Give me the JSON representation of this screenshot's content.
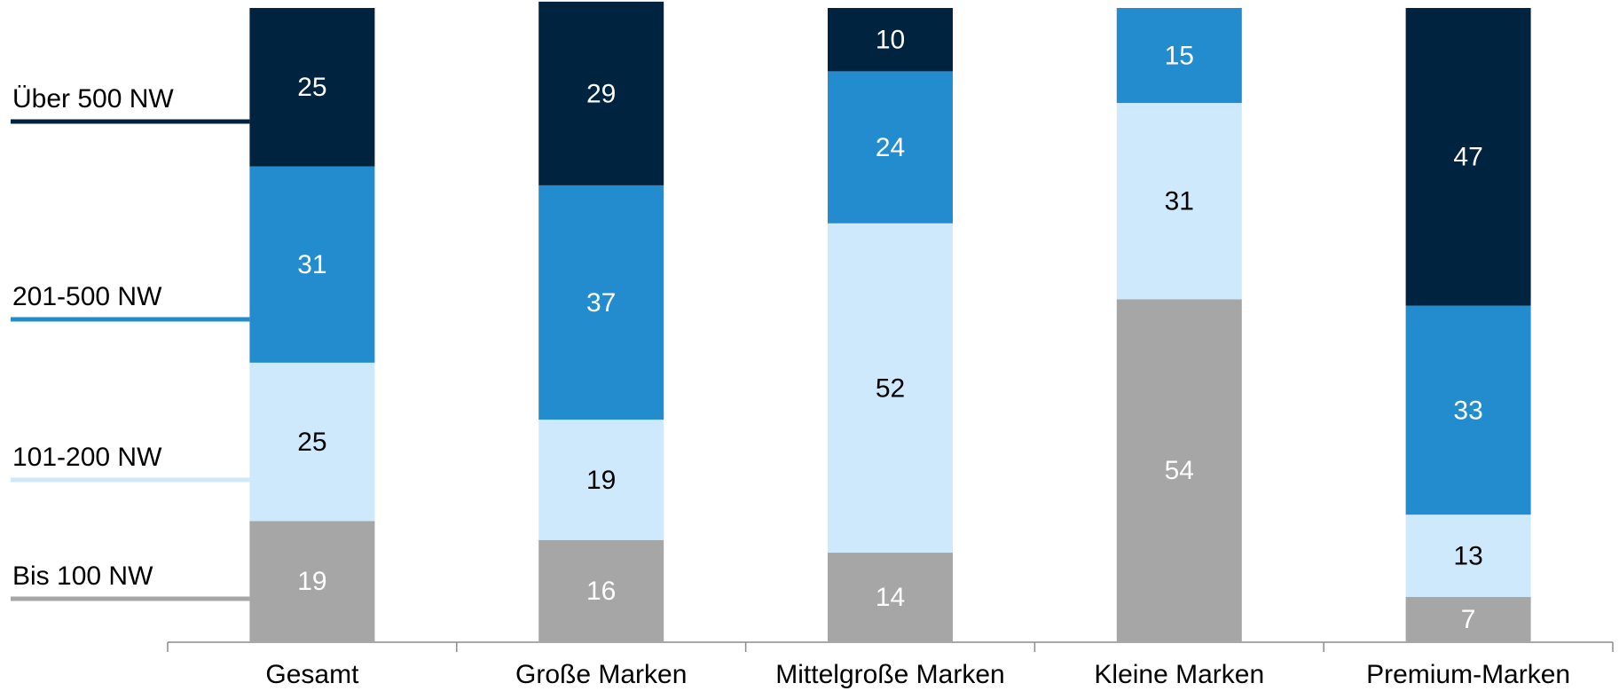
{
  "chart_data": {
    "type": "stacked_bar",
    "categories": [
      "Gesamt",
      "Große Marken",
      "Mittelgroße Marken",
      "Kleine Marken",
      "Premium-Marken"
    ],
    "series": [
      {
        "name": "Bis 100 NW",
        "color": "#a6a6a6",
        "label_color": "#ffffff",
        "values": [
          19,
          16,
          14,
          54,
          7
        ]
      },
      {
        "name": "101-200 NW",
        "color": "#cfe9fc",
        "label_color": "#000000",
        "values": [
          25,
          19,
          52,
          31,
          13
        ]
      },
      {
        "name": "201-500 NW",
        "color": "#238ccf",
        "label_color": "#ffffff",
        "values": [
          31,
          37,
          24,
          15,
          33
        ]
      },
      {
        "name": "Über 500 NW",
        "color": "#002340",
        "label_color": "#ffffff",
        "values": [
          25,
          29,
          10,
          null,
          47
        ]
      }
    ],
    "ylim": [
      0,
      100
    ]
  }
}
